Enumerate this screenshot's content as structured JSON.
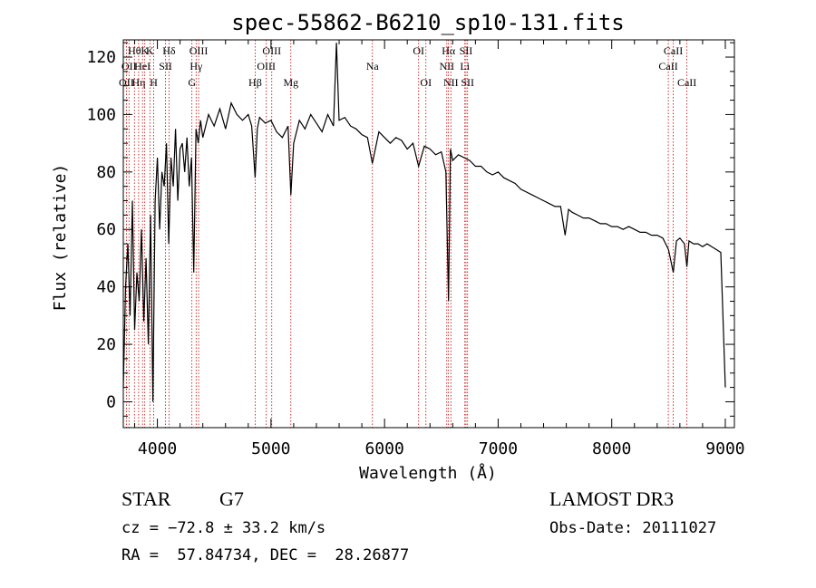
{
  "chart_data": {
    "type": "line",
    "title": "spec-55862-B6210_sp10-131.fits",
    "xlabel": "Wavelength (Å)",
    "ylabel": "Flux (relative)",
    "xlim": [
      3700,
      9080
    ],
    "ylim": [
      -9,
      126
    ],
    "xticks": [
      4000,
      5000,
      6000,
      7000,
      8000,
      9000
    ],
    "yticks": [
      0,
      20,
      40,
      60,
      80,
      100,
      120
    ],
    "grid": false,
    "series": [
      {
        "color": "#000000",
        "x": [
          3700,
          3720,
          3740,
          3760,
          3780,
          3800,
          3820,
          3840,
          3860,
          3880,
          3900,
          3920,
          3940,
          3960,
          3980,
          4000,
          4020,
          4040,
          4060,
          4080,
          4100,
          4120,
          4140,
          4160,
          4180,
          4200,
          4220,
          4240,
          4260,
          4280,
          4300,
          4320,
          4340,
          4360,
          4380,
          4400,
          4450,
          4500,
          4550,
          4600,
          4650,
          4700,
          4750,
          4800,
          4830,
          4861,
          4880,
          4900,
          4950,
          5000,
          5050,
          5100,
          5150,
          5175,
          5200,
          5250,
          5300,
          5350,
          5400,
          5450,
          5500,
          5550,
          5577,
          5600,
          5650,
          5700,
          5750,
          5800,
          5850,
          5893,
          5950,
          6000,
          6050,
          6100,
          6150,
          6200,
          6250,
          6300,
          6350,
          6400,
          6450,
          6500,
          6540,
          6563,
          6580,
          6600,
          6650,
          6700,
          6750,
          6800,
          6850,
          6900,
          6950,
          7000,
          7050,
          7100,
          7150,
          7200,
          7250,
          7300,
          7350,
          7400,
          7450,
          7500,
          7550,
          7590,
          7620,
          7650,
          7700,
          7750,
          7800,
          7850,
          7900,
          7950,
          8000,
          8050,
          8100,
          8150,
          8200,
          8250,
          8300,
          8350,
          8400,
          8450,
          8500,
          8542,
          8570,
          8600,
          8640,
          8662,
          8680,
          8720,
          8760,
          8800,
          8840,
          8880,
          8920,
          8960,
          9000
        ],
        "y": [
          5,
          40,
          55,
          30,
          70,
          25,
          45,
          35,
          60,
          28,
          50,
          20,
          65,
          0,
          70,
          85,
          60,
          80,
          75,
          90,
          55,
          85,
          75,
          95,
          70,
          88,
          90,
          80,
          92,
          75,
          85,
          45,
          95,
          90,
          98,
          92,
          100,
          96,
          102,
          95,
          104,
          100,
          98,
          100,
          96,
          78,
          95,
          99,
          97,
          98,
          94,
          92,
          96,
          72,
          90,
          98,
          95,
          100,
          97,
          94,
          100,
          96,
          125,
          98,
          99,
          96,
          95,
          93,
          92,
          83,
          94,
          92,
          90,
          92,
          91,
          88,
          90,
          82,
          89,
          88,
          86,
          87,
          80,
          35,
          88,
          84,
          86,
          85,
          84,
          82,
          82,
          80,
          79,
          80,
          78,
          77,
          76,
          74,
          73,
          72,
          71,
          70,
          69,
          68,
          68,
          58,
          67,
          66,
          65,
          64,
          64,
          63,
          62,
          62,
          61,
          61,
          60,
          61,
          60,
          59,
          59,
          58,
          58,
          57,
          53,
          45,
          56,
          57,
          55,
          47,
          56,
          55,
          55,
          54,
          55,
          54,
          53,
          52,
          5
        ]
      }
    ],
    "lines": [
      {
        "wavelength": 3727,
        "row": 2,
        "label": "OII"
      },
      {
        "wavelength": 3750,
        "row": 1,
        "label": "OII"
      },
      {
        "wavelength": 3798,
        "row": 0,
        "label": "Hθ"
      },
      {
        "wavelength": 3835,
        "row": 2,
        "label": "Hη"
      },
      {
        "wavelength": 3869,
        "row": 1,
        "label": "HeI"
      },
      {
        "wavelength": 3889,
        "row": 0,
        "label": "K"
      },
      {
        "wavelength": 3934,
        "row": 0,
        "label": "K"
      },
      {
        "wavelength": 3968,
        "row": 2,
        "label": "H"
      },
      {
        "wavelength": 4072,
        "row": 1,
        "label": "SII"
      },
      {
        "wavelength": 4102,
        "row": 0,
        "label": "Hδ"
      },
      {
        "wavelength": 4304,
        "row": 2,
        "label": "G"
      },
      {
        "wavelength": 4341,
        "row": 1,
        "label": "Hγ"
      },
      {
        "wavelength": 4363,
        "row": 0,
        "label": "OIII"
      },
      {
        "wavelength": 4861,
        "row": 2,
        "label": "Hβ"
      },
      {
        "wavelength": 4959,
        "row": 1,
        "label": "OIII"
      },
      {
        "wavelength": 5007,
        "row": 0,
        "label": "OIII"
      },
      {
        "wavelength": 5175,
        "row": 2,
        "label": "Mg"
      },
      {
        "wavelength": 5893,
        "row": 1,
        "label": "Na"
      },
      {
        "wavelength": 6300,
        "row": 0,
        "label": "OI"
      },
      {
        "wavelength": 6364,
        "row": 2,
        "label": "OI"
      },
      {
        "wavelength": 6548,
        "row": 1,
        "label": "NII"
      },
      {
        "wavelength": 6563,
        "row": 0,
        "label": "Hα"
      },
      {
        "wavelength": 6584,
        "row": 2,
        "label": "NII"
      },
      {
        "wavelength": 6707,
        "row": 1,
        "label": "Li"
      },
      {
        "wavelength": 6717,
        "row": 0,
        "label": "SII"
      },
      {
        "wavelength": 6731,
        "row": 2,
        "label": "SII"
      },
      {
        "wavelength": 8498,
        "row": 1,
        "label": "CaII"
      },
      {
        "wavelength": 8542,
        "row": 0,
        "label": "CaII"
      },
      {
        "wavelength": 8662,
        "row": 2,
        "label": "CaII"
      }
    ]
  },
  "footer": {
    "object_class": "STAR",
    "subclass": "G7",
    "cz": "cz = −72.8 ± 33.2 km/s",
    "coords": "RA =  57.84734, DEC =  28.26877",
    "survey": "LAMOST DR3",
    "obs_date": "Obs-Date: 20111027"
  }
}
